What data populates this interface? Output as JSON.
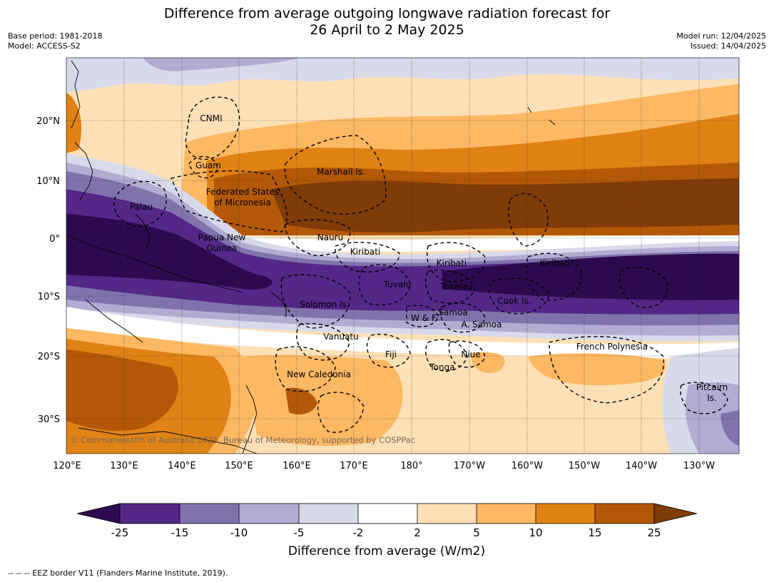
{
  "header": {
    "title_line1": "Difference from average outgoing longwave radiation forecast for",
    "title_line2": "26 April to 2 May 2025",
    "base_period": "Base period: 1981-2018",
    "model": "Model: ACCESS-S2",
    "model_run": "Model run: 12/04/2025",
    "issued": "Issued: 14/04/2025"
  },
  "map": {
    "lat_labels": [
      "20°N",
      "10°N",
      "0°",
      "10°S",
      "20°S",
      "30°S"
    ],
    "lon_labels": [
      "120°E",
      "130°E",
      "140°E",
      "150°E",
      "160°E",
      "170°E",
      "180°",
      "170°W",
      "160°W",
      "150°W",
      "140°W",
      "130°W"
    ],
    "regions": {
      "cnmi": "CNMI",
      "guam": "Guam",
      "marshall": "Marshall Is.",
      "fsm_1": "Federated States",
      "fsm_2": "of Micronesia",
      "palau": "Palau",
      "png_1": "Papua New",
      "png_2": "Guinea",
      "nauru": "Nauru",
      "kiribati_w": "Kiribati",
      "kiribati_c": "Kiribati",
      "kiribati_e": "Kiribati",
      "tuvalu": "Tuvalu",
      "tokelau": "Tokelau",
      "cook": "Cook Is.",
      "solomon": "Solomon Is.",
      "wf": "W & F",
      "samoa": "Samoa",
      "asamoa": "A. Samoa",
      "vanuatu": "Vanuatu",
      "fiji": "Fiji",
      "niue": "Niue",
      "tonga": "Tonga",
      "frenchpoly": "French Polynesia",
      "newcal": "New Caledonia",
      "pitcairn_1": "Pitcairn",
      "pitcairn_2": "Is."
    },
    "copyright": "© Commonwealth of Australia 2025, Bureau of Meteorology, supported by COSPPac"
  },
  "colorbar": {
    "ticks": [
      "-25",
      "-15",
      "-10",
      "-5",
      "-2",
      "2",
      "5",
      "10",
      "15",
      "25"
    ],
    "colors": {
      "lt_m25": "#2d0a4f",
      "m25_m15": "#542788",
      "m15_m10": "#8073ac",
      "m10_m5": "#b2abd2",
      "m5_m2": "#d8daeb",
      "m2_2": "#ffffff",
      "p2_5": "#fee0b6",
      "p5_10": "#fdb863",
      "p10_15": "#e08214",
      "p15_25": "#b35806",
      "gt_25": "#7f3b08"
    },
    "title": "Difference from average (W/m2)"
  },
  "footer": {
    "legend_line": "--  --  -- EEZ border V11 (Flanders Marine Institute, 2019)."
  }
}
